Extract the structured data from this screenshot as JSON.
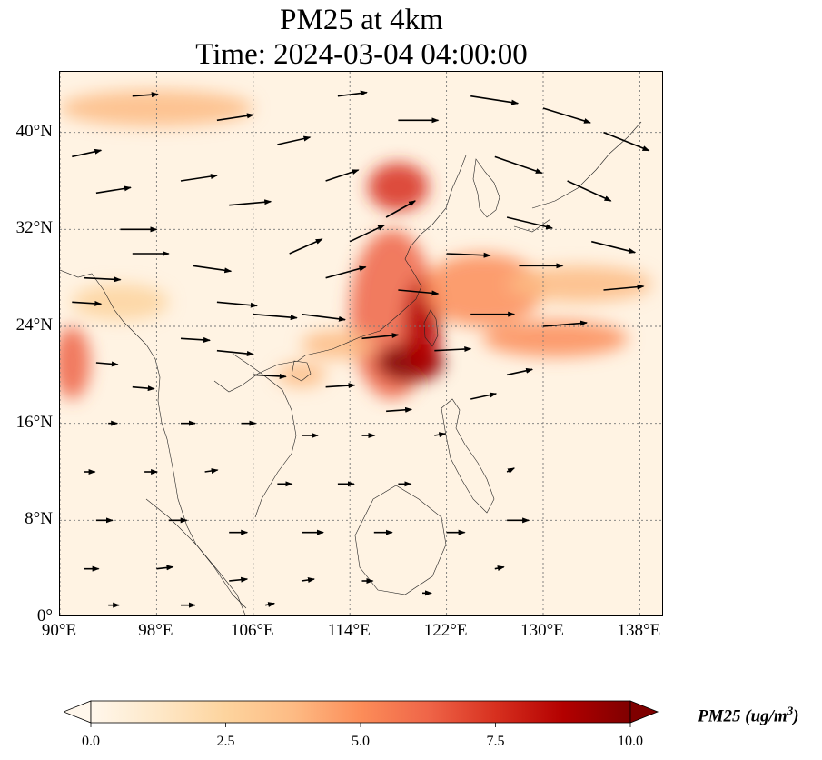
{
  "title": {
    "line1": "PM25 at 4km",
    "line2": "Time: 2024-03-04 04:00:00"
  },
  "map": {
    "extent": {
      "lon_min": 90,
      "lon_max": 140,
      "lat_min": 0,
      "lat_max": 45
    },
    "lat_ticks": [
      {
        "value": 0,
        "label": "0°"
      },
      {
        "value": 8,
        "label": "8°N"
      },
      {
        "value": 16,
        "label": "16°N"
      },
      {
        "value": 24,
        "label": "24°N"
      },
      {
        "value": 32,
        "label": "32°N"
      },
      {
        "value": 40,
        "label": "40°N"
      }
    ],
    "lon_ticks": [
      {
        "value": 90,
        "label": "90°E"
      },
      {
        "value": 98,
        "label": "98°E"
      },
      {
        "value": 106,
        "label": "106°E"
      },
      {
        "value": 114,
        "label": "114°E"
      },
      {
        "value": 122,
        "label": "122°E"
      },
      {
        "value": 130,
        "label": "130°E"
      },
      {
        "value": 138,
        "label": "138°E"
      }
    ],
    "gridlines": "dotted",
    "background_color": "#fff3e3",
    "concentration_features": [
      {
        "name": "east-china-plume",
        "lon": 117.5,
        "lat": 25,
        "rx": 3.5,
        "ry": 7,
        "value": 6.5
      },
      {
        "name": "taiwan-plume-core",
        "lon": 119,
        "lat": 21,
        "rx": 2.8,
        "ry": 1.6,
        "value": 9.5
      },
      {
        "name": "taiwan-strait-band",
        "lon": 120,
        "lat": 24,
        "rx": 1.5,
        "ry": 4,
        "value": 8.5
      },
      {
        "name": "shandong-band",
        "lon": 118,
        "lat": 35.5,
        "rx": 2.5,
        "ry": 2,
        "value": 7
      },
      {
        "name": "east-china-sea-plume",
        "lon": 125,
        "lat": 27,
        "rx": 5,
        "ry": 3,
        "value": 5
      },
      {
        "name": "pacific-tail",
        "lon": 131,
        "lat": 23,
        "rx": 6,
        "ry": 1.5,
        "value": 5.5
      },
      {
        "name": "south-of-japan-band",
        "lon": 133,
        "lat": 27.5,
        "rx": 6,
        "ry": 1.5,
        "value": 4
      },
      {
        "name": "myanmar-coast",
        "lon": 91,
        "lat": 21,
        "rx": 1.5,
        "ry": 3,
        "value": 6
      },
      {
        "name": "west-band",
        "lon": 95,
        "lat": 26,
        "rx": 4,
        "ry": 1.5,
        "value": 3
      },
      {
        "name": "north-band",
        "lon": 98,
        "lat": 42,
        "rx": 8,
        "ry": 1.5,
        "value": 3.5
      },
      {
        "name": "gulf-tonkin",
        "lon": 110,
        "lat": 20,
        "rx": 2,
        "ry": 1,
        "value": 4
      },
      {
        "name": "south-china-coast",
        "lon": 113,
        "lat": 22.5,
        "rx": 3,
        "ry": 1.2,
        "value": 3.5
      }
    ],
    "wind_vectors": [
      {
        "lon": 91,
        "lat": 38,
        "u": 1.6,
        "v": 0.35
      },
      {
        "lon": 93,
        "lat": 35,
        "u": 1.9,
        "v": 0.3
      },
      {
        "lon": 95,
        "lat": 32,
        "u": 2.0,
        "v": 0.0
      },
      {
        "lon": 92,
        "lat": 28,
        "u": 2.0,
        "v": -0.1
      },
      {
        "lon": 91,
        "lat": 26,
        "u": 1.6,
        "v": -0.1
      },
      {
        "lon": 96,
        "lat": 30,
        "u": 2.0,
        "v": 0.0
      },
      {
        "lon": 100,
        "lat": 36,
        "u": 2.0,
        "v": 0.3
      },
      {
        "lon": 104,
        "lat": 34,
        "u": 2.3,
        "v": 0.2
      },
      {
        "lon": 101,
        "lat": 29,
        "u": 2.1,
        "v": -0.3
      },
      {
        "lon": 103,
        "lat": 26,
        "u": 2.2,
        "v": -0.2
      },
      {
        "lon": 106,
        "lat": 25,
        "u": 2.4,
        "v": -0.2
      },
      {
        "lon": 100,
        "lat": 23,
        "u": 1.6,
        "v": -0.1
      },
      {
        "lon": 103,
        "lat": 22,
        "u": 2.0,
        "v": -0.2
      },
      {
        "lon": 106,
        "lat": 20,
        "u": 1.8,
        "v": -0.1
      },
      {
        "lon": 110,
        "lat": 25,
        "u": 2.4,
        "v": -0.3
      },
      {
        "lon": 112,
        "lat": 28,
        "u": 2.2,
        "v": 0.6
      },
      {
        "lon": 109,
        "lat": 30,
        "u": 1.8,
        "v": 0.8
      },
      {
        "lon": 114,
        "lat": 31,
        "u": 1.9,
        "v": 0.9
      },
      {
        "lon": 117,
        "lat": 33,
        "u": 1.6,
        "v": 0.9
      },
      {
        "lon": 112,
        "lat": 36,
        "u": 1.8,
        "v": 0.6
      },
      {
        "lon": 108,
        "lat": 39,
        "u": 1.8,
        "v": 0.4
      },
      {
        "lon": 103,
        "lat": 41,
        "u": 2.0,
        "v": 0.3
      },
      {
        "lon": 96,
        "lat": 43,
        "u": 1.4,
        "v": 0.1
      },
      {
        "lon": 113,
        "lat": 43,
        "u": 1.6,
        "v": 0.2
      },
      {
        "lon": 118,
        "lat": 41,
        "u": 2.2,
        "v": 0.0
      },
      {
        "lon": 124,
        "lat": 43,
        "u": 2.6,
        "v": -0.4
      },
      {
        "lon": 130,
        "lat": 42,
        "u": 2.6,
        "v": -0.8
      },
      {
        "lon": 135,
        "lat": 40,
        "u": 2.5,
        "v": -1.0
      },
      {
        "lon": 126,
        "lat": 38,
        "u": 2.6,
        "v": -0.9
      },
      {
        "lon": 132,
        "lat": 36,
        "u": 2.4,
        "v": -1.1
      },
      {
        "lon": 127,
        "lat": 33,
        "u": 2.5,
        "v": -0.6
      },
      {
        "lon": 134,
        "lat": 31,
        "u": 2.4,
        "v": -0.6
      },
      {
        "lon": 122,
        "lat": 30,
        "u": 2.4,
        "v": -0.1
      },
      {
        "lon": 128,
        "lat": 29,
        "u": 2.4,
        "v": 0.0
      },
      {
        "lon": 135,
        "lat": 27,
        "u": 2.2,
        "v": 0.2
      },
      {
        "lon": 118,
        "lat": 27,
        "u": 2.2,
        "v": -0.2
      },
      {
        "lon": 124,
        "lat": 25,
        "u": 2.4,
        "v": 0.0
      },
      {
        "lon": 130,
        "lat": 24,
        "u": 2.4,
        "v": 0.2
      },
      {
        "lon": 115,
        "lat": 23,
        "u": 2.0,
        "v": 0.2
      },
      {
        "lon": 121,
        "lat": 22,
        "u": 2.0,
        "v": 0.1
      },
      {
        "lon": 127,
        "lat": 20,
        "u": 1.4,
        "v": 0.3
      },
      {
        "lon": 112,
        "lat": 19,
        "u": 1.6,
        "v": 0.1
      },
      {
        "lon": 117,
        "lat": 17,
        "u": 1.4,
        "v": 0.1
      },
      {
        "lon": 124,
        "lat": 18,
        "u": 1.4,
        "v": 0.3
      },
      {
        "lon": 93,
        "lat": 21,
        "u": 1.2,
        "v": -0.1
      },
      {
        "lon": 96,
        "lat": 19,
        "u": 1.2,
        "v": -0.1
      },
      {
        "lon": 94,
        "lat": 16,
        "u": 0.5,
        "v": 0.0
      },
      {
        "lon": 100,
        "lat": 16,
        "u": 0.8,
        "v": 0.0
      },
      {
        "lon": 105,
        "lat": 16,
        "u": 0.8,
        "v": 0.0
      },
      {
        "lon": 110,
        "lat": 15,
        "u": 0.9,
        "v": 0.0
      },
      {
        "lon": 115,
        "lat": 15,
        "u": 0.7,
        "v": 0.0
      },
      {
        "lon": 121,
        "lat": 15,
        "u": 0.6,
        "v": 0.1
      },
      {
        "lon": 92,
        "lat": 12,
        "u": 0.6,
        "v": 0.0
      },
      {
        "lon": 97,
        "lat": 12,
        "u": 0.7,
        "v": 0.0
      },
      {
        "lon": 102,
        "lat": 12,
        "u": 0.7,
        "v": 0.1
      },
      {
        "lon": 108,
        "lat": 11,
        "u": 0.8,
        "v": 0.0
      },
      {
        "lon": 113,
        "lat": 11,
        "u": 0.9,
        "v": 0.0
      },
      {
        "lon": 118,
        "lat": 11,
        "u": 0.7,
        "v": 0.0
      },
      {
        "lon": 127,
        "lat": 12,
        "u": 0.4,
        "v": 0.2
      },
      {
        "lon": 93,
        "lat": 8,
        "u": 0.9,
        "v": 0.0
      },
      {
        "lon": 99,
        "lat": 8,
        "u": 1.0,
        "v": 0.0
      },
      {
        "lon": 104,
        "lat": 7,
        "u": 1.0,
        "v": 0.0
      },
      {
        "lon": 110,
        "lat": 7,
        "u": 1.2,
        "v": 0.0
      },
      {
        "lon": 116,
        "lat": 7,
        "u": 1.0,
        "v": 0.0
      },
      {
        "lon": 122,
        "lat": 7,
        "u": 1.0,
        "v": 0.0
      },
      {
        "lon": 127,
        "lat": 8,
        "u": 1.2,
        "v": 0.0
      },
      {
        "lon": 92,
        "lat": 4,
        "u": 0.8,
        "v": 0.0
      },
      {
        "lon": 98,
        "lat": 4,
        "u": 0.9,
        "v": 0.1
      },
      {
        "lon": 104,
        "lat": 3,
        "u": 1.0,
        "v": 0.1
      },
      {
        "lon": 110,
        "lat": 3,
        "u": 0.7,
        "v": 0.1
      },
      {
        "lon": 115,
        "lat": 3,
        "u": 0.6,
        "v": 0.0
      },
      {
        "lon": 120,
        "lat": 2,
        "u": 0.5,
        "v": 0.0
      },
      {
        "lon": 126,
        "lat": 4,
        "u": 0.5,
        "v": 0.1
      },
      {
        "lon": 94,
        "lat": 1,
        "u": 0.6,
        "v": 0.0
      },
      {
        "lon": 100,
        "lat": 1,
        "u": 0.8,
        "v": 0.0
      },
      {
        "lon": 107,
        "lat": 1,
        "u": 0.5,
        "v": 0.1
      }
    ]
  },
  "colorbar": {
    "min": 0.0,
    "max": 10.0,
    "extend": "both",
    "ticks": [
      "0.0",
      "2.5",
      "5.0",
      "7.5",
      "10.0"
    ],
    "tick_values": [
      0,
      2.5,
      5,
      7.5,
      10
    ],
    "label": "PM25 (ug/m",
    "label_superscript": "3",
    "label_close": ")",
    "colormap": "OrRd",
    "colors": [
      "#fff7ec",
      "#fee8c8",
      "#fdd49e",
      "#fdbb84",
      "#fc8d59",
      "#ef6548",
      "#d7301f",
      "#b30000",
      "#7f0000"
    ]
  }
}
